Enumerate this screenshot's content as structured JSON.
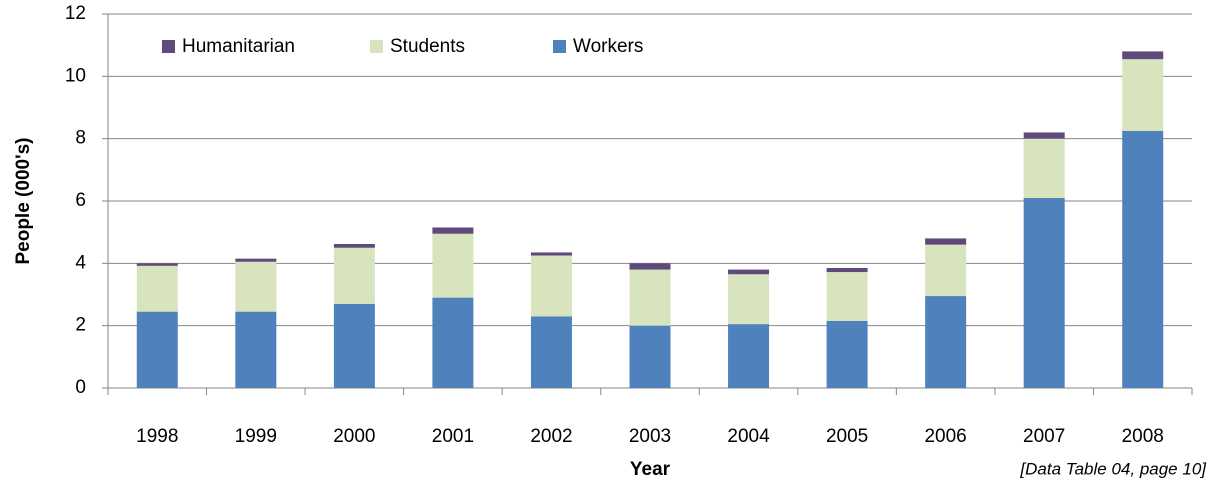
{
  "chart_data": {
    "type": "stacked_bar",
    "x_label": "Year",
    "y_label": "People (000's)",
    "note": "[Data Table 04, page 10]",
    "categories": [
      "1998",
      "1999",
      "2000",
      "2001",
      "2002",
      "2003",
      "2004",
      "2005",
      "2006",
      "2007",
      "2008"
    ],
    "series": [
      {
        "name": "Workers",
        "color": "#4f81bd",
        "values": [
          2.45,
          2.45,
          2.7,
          2.9,
          2.3,
          2.0,
          2.05,
          2.15,
          2.95,
          6.1,
          8.25
        ]
      },
      {
        "name": "Students",
        "color": "#d7e4bd",
        "values": [
          1.47,
          1.6,
          1.8,
          2.05,
          1.95,
          1.8,
          1.6,
          1.57,
          1.65,
          1.9,
          2.3
        ]
      },
      {
        "name": "Humanitarian",
        "color": "#604a7b",
        "values": [
          0.08,
          0.1,
          0.12,
          0.2,
          0.1,
          0.2,
          0.15,
          0.13,
          0.2,
          0.2,
          0.25
        ]
      }
    ],
    "ylim": [
      0,
      12
    ],
    "yticks": [
      0,
      2,
      4,
      6,
      8,
      10,
      12
    ],
    "grid": true,
    "legend": "top-left"
  }
}
